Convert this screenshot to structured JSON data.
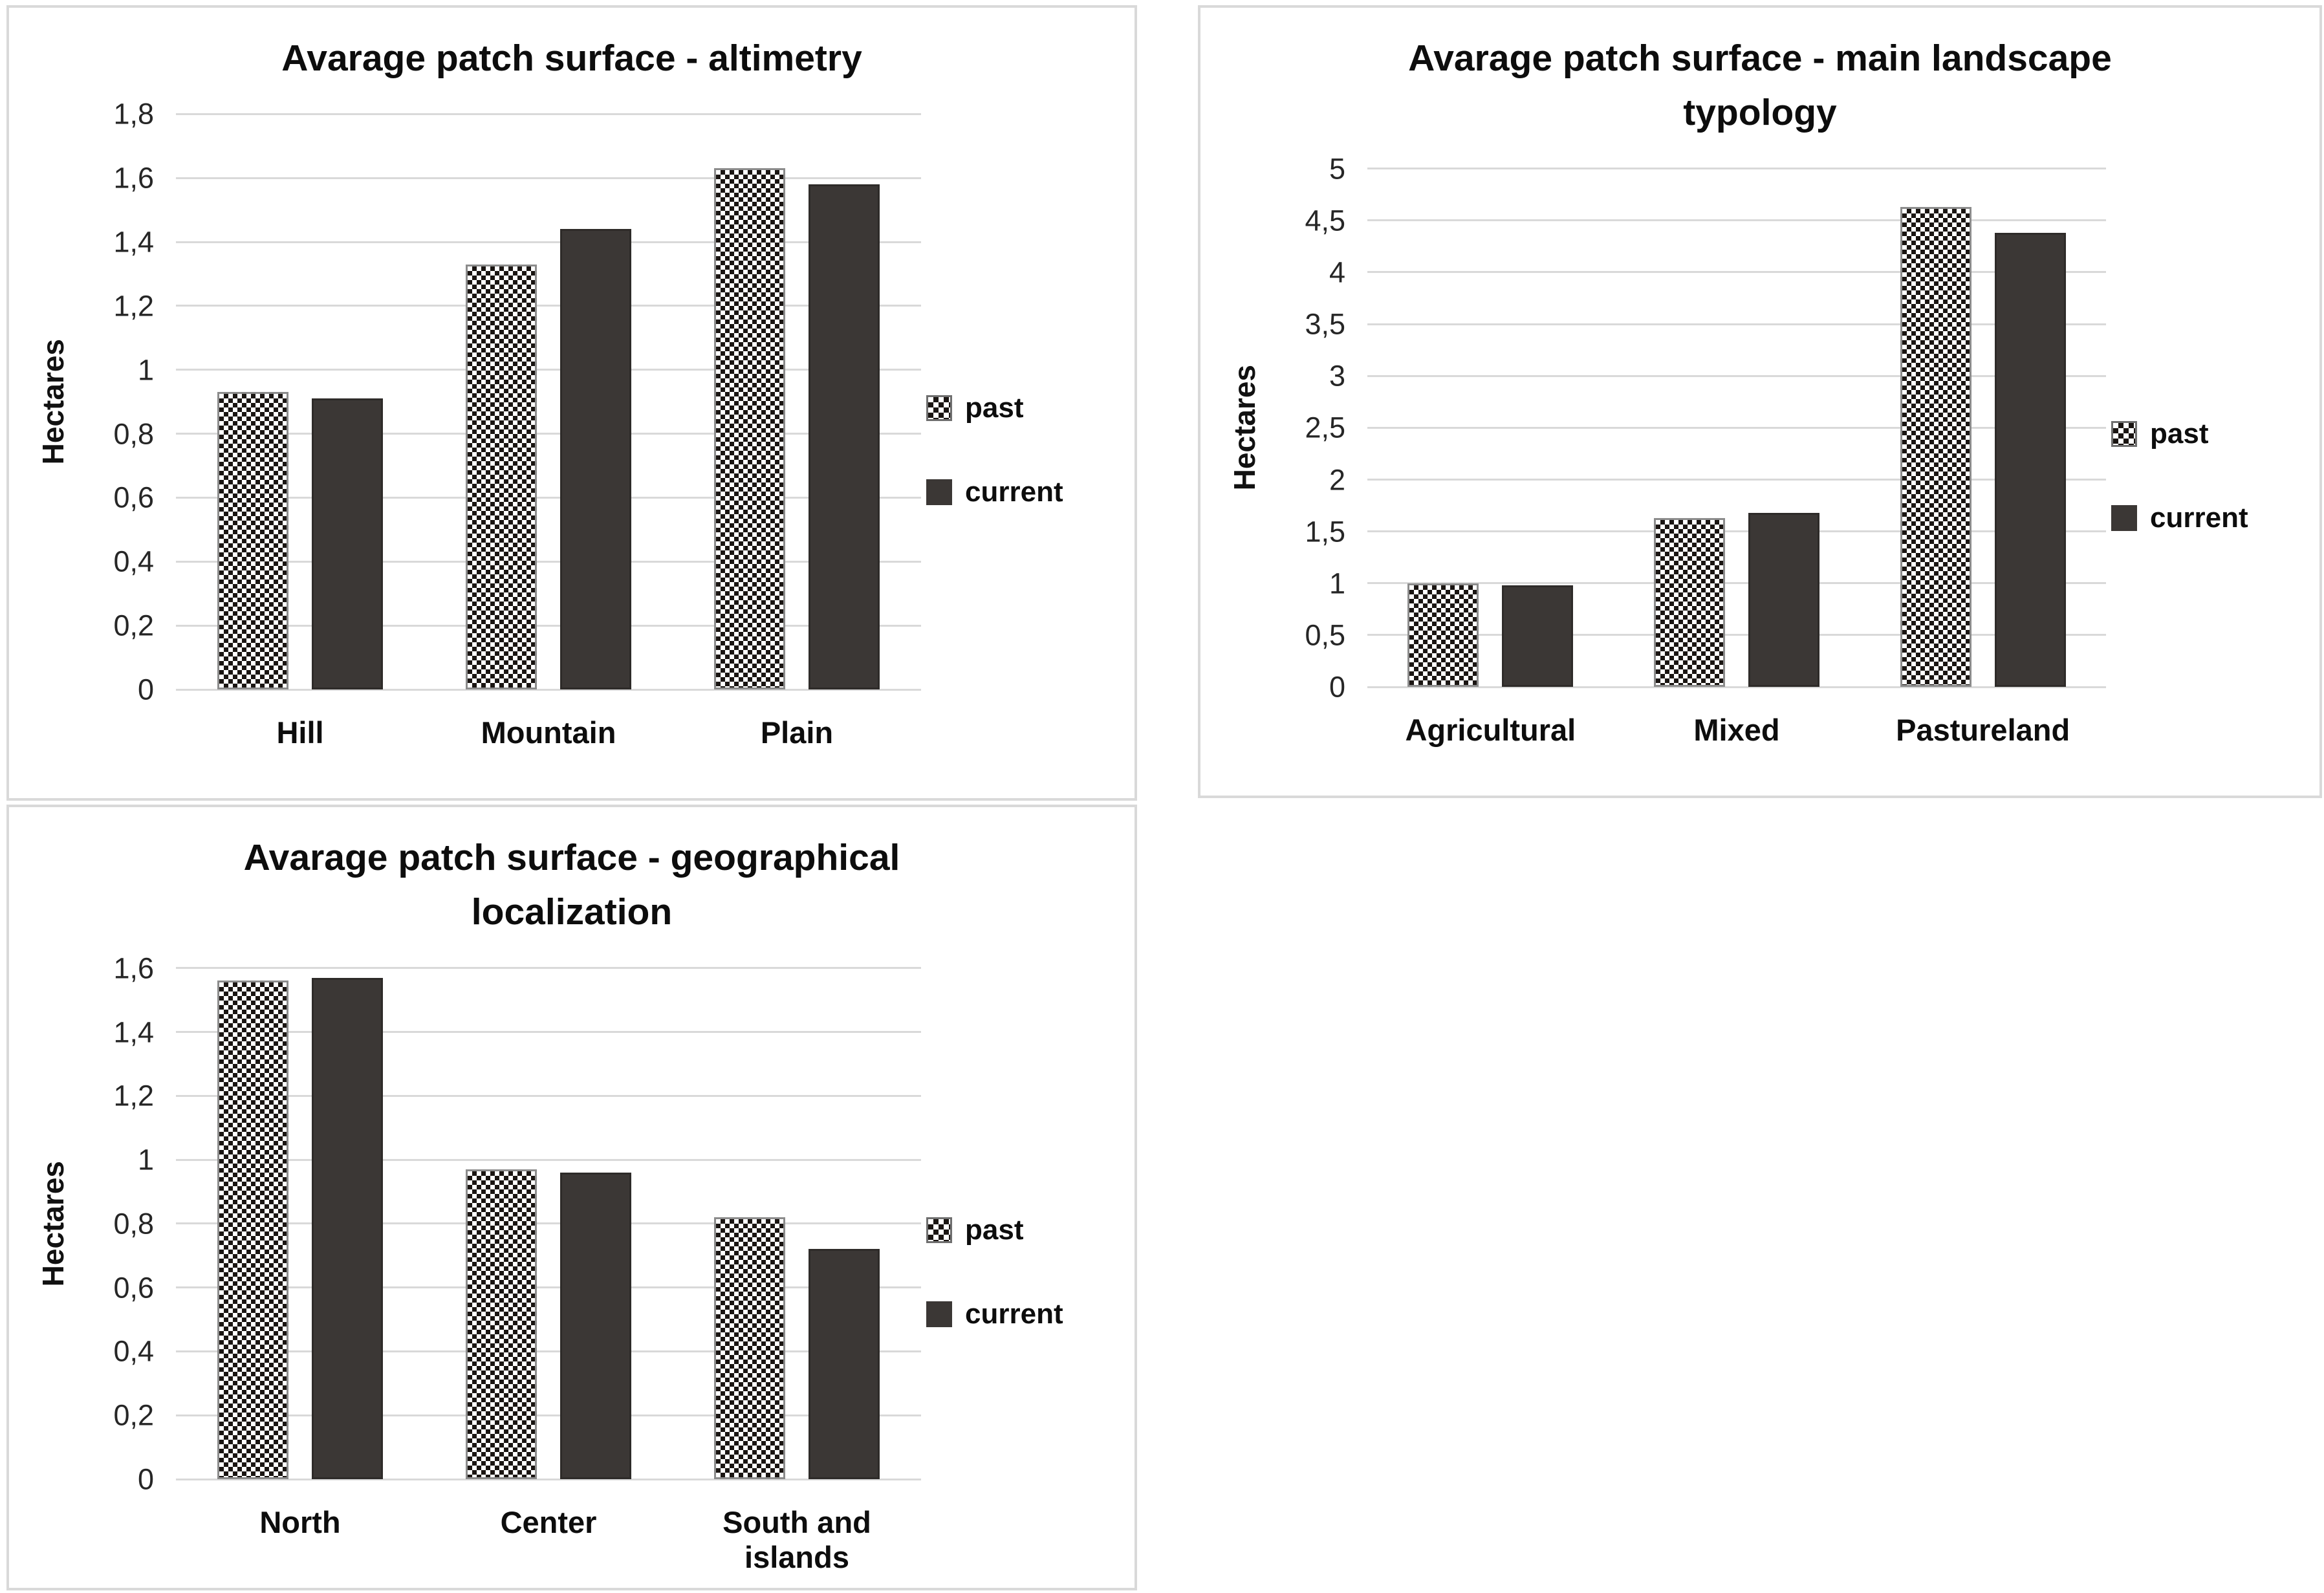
{
  "colors": {
    "background": "#ffffff",
    "panel_border": "#d9d9d9",
    "gridline": "#d9d9d9",
    "bar_current_fill": "#3b3735",
    "bar_current_border": "#2e2b29",
    "bar_past_fill": "#ffffff",
    "bar_past_checker": "#1a1512",
    "bar_past_border": "#8c8c8c"
  },
  "chart_data": [
    {
      "type": "bar",
      "title": "Avarage patch surface - altimetry",
      "title_lines": [
        "Avarage patch surface - altimetry"
      ],
      "ylabel": "Hectares",
      "xlabel": "",
      "ylim": [
        0,
        1.8
      ],
      "grid": true,
      "legend_position": "right",
      "yticks": [
        {
          "value": 0,
          "label": "0"
        },
        {
          "value": 0.2,
          "label": "0,2"
        },
        {
          "value": 0.4,
          "label": "0,4"
        },
        {
          "value": 0.6,
          "label": "0,6"
        },
        {
          "value": 0.8,
          "label": "0,8"
        },
        {
          "value": 1,
          "label": "1"
        },
        {
          "value": 1.2,
          "label": "1,2"
        },
        {
          "value": 1.4,
          "label": "1,4"
        },
        {
          "value": 1.6,
          "label": "1,6"
        },
        {
          "value": 1.8,
          "label": "1,8"
        }
      ],
      "categories": [
        "Hill",
        "Mountain",
        "Plain"
      ],
      "series": [
        {
          "name": "past",
          "pattern": "checker",
          "values": [
            0.93,
            1.33,
            1.63
          ]
        },
        {
          "name": "current",
          "pattern": "solid",
          "values": [
            0.91,
            1.44,
            1.58
          ]
        }
      ]
    },
    {
      "type": "bar",
      "title": "Avarage patch surface - main landscape typology",
      "title_lines": [
        "Avarage patch surface - main landscape",
        "typology"
      ],
      "ylabel": "Hectares",
      "xlabel": "",
      "ylim": [
        0,
        5
      ],
      "grid": true,
      "legend_position": "right",
      "yticks": [
        {
          "value": 0,
          "label": "0"
        },
        {
          "value": 0.5,
          "label": "0,5"
        },
        {
          "value": 1,
          "label": "1"
        },
        {
          "value": 1.5,
          "label": "1,5"
        },
        {
          "value": 2,
          "label": "2"
        },
        {
          "value": 2.5,
          "label": "2,5"
        },
        {
          "value": 3,
          "label": "3"
        },
        {
          "value": 3.5,
          "label": "3,5"
        },
        {
          "value": 4,
          "label": "4"
        },
        {
          "value": 4.5,
          "label": "4,5"
        },
        {
          "value": 5,
          "label": "5"
        }
      ],
      "categories": [
        "Agricultural",
        "Mixed",
        "Pastureland"
      ],
      "series": [
        {
          "name": "past",
          "pattern": "checker",
          "values": [
            1.0,
            1.63,
            4.63
          ]
        },
        {
          "name": "current",
          "pattern": "solid",
          "values": [
            0.98,
            1.68,
            4.38
          ]
        }
      ]
    },
    {
      "type": "bar",
      "title": "Avarage patch surface - geographical localization",
      "title_lines": [
        "Avarage patch surface - geographical",
        "localization"
      ],
      "ylabel": "Hectares",
      "xlabel": "",
      "ylim": [
        0,
        1.6
      ],
      "grid": true,
      "legend_position": "right",
      "yticks": [
        {
          "value": 0,
          "label": "0"
        },
        {
          "value": 0.2,
          "label": "0,2"
        },
        {
          "value": 0.4,
          "label": "0,4"
        },
        {
          "value": 0.6,
          "label": "0,6"
        },
        {
          "value": 0.8,
          "label": "0,8"
        },
        {
          "value": 1,
          "label": "1"
        },
        {
          "value": 1.2,
          "label": "1,2"
        },
        {
          "value": 1.4,
          "label": "1,4"
        },
        {
          "value": 1.6,
          "label": "1,6"
        }
      ],
      "categories": [
        "North",
        "Center",
        "South and islands"
      ],
      "series": [
        {
          "name": "past",
          "pattern": "checker",
          "values": [
            1.56,
            0.97,
            0.82
          ]
        },
        {
          "name": "current",
          "pattern": "solid",
          "values": [
            1.57,
            0.96,
            0.72
          ]
        }
      ]
    }
  ]
}
